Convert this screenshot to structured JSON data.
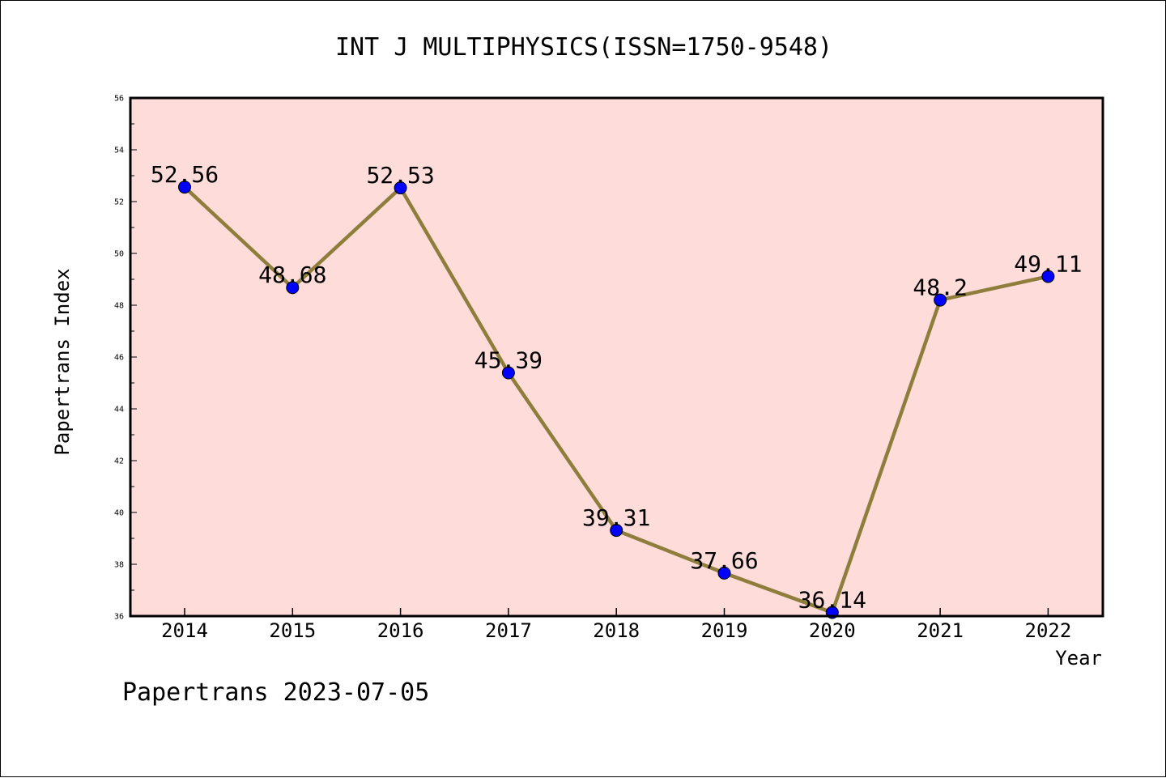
{
  "chart_data": {
    "type": "line",
    "title": "INT J MULTIPHYSICS(ISSN=1750-9548)",
    "xlabel": "Year",
    "ylabel": "Papertrans Index",
    "categories": [
      "2014",
      "2015",
      "2016",
      "2017",
      "2018",
      "2019",
      "2020",
      "2021",
      "2022"
    ],
    "series": [
      {
        "values": [
          52.56,
          48.68,
          52.53,
          45.39,
          39.31,
          37.66,
          36.14,
          48.2,
          49.11
        ],
        "labels": [
          "52.56",
          "48.68",
          "52.53",
          "45.39",
          "39.31",
          "37.66",
          "36.14",
          "48.2",
          "49.11"
        ],
        "line_color": "#8f7d3c",
        "marker_color": "#0000ff"
      }
    ],
    "ylim": [
      36,
      56
    ],
    "yticks": [
      "36",
      "38",
      "40",
      "42",
      "44",
      "46",
      "48",
      "50",
      "52",
      "54",
      "56"
    ],
    "plot_background": "#fddcda",
    "grid": false,
    "legend": "none"
  },
  "footer": "Papertrans 2023-07-05"
}
